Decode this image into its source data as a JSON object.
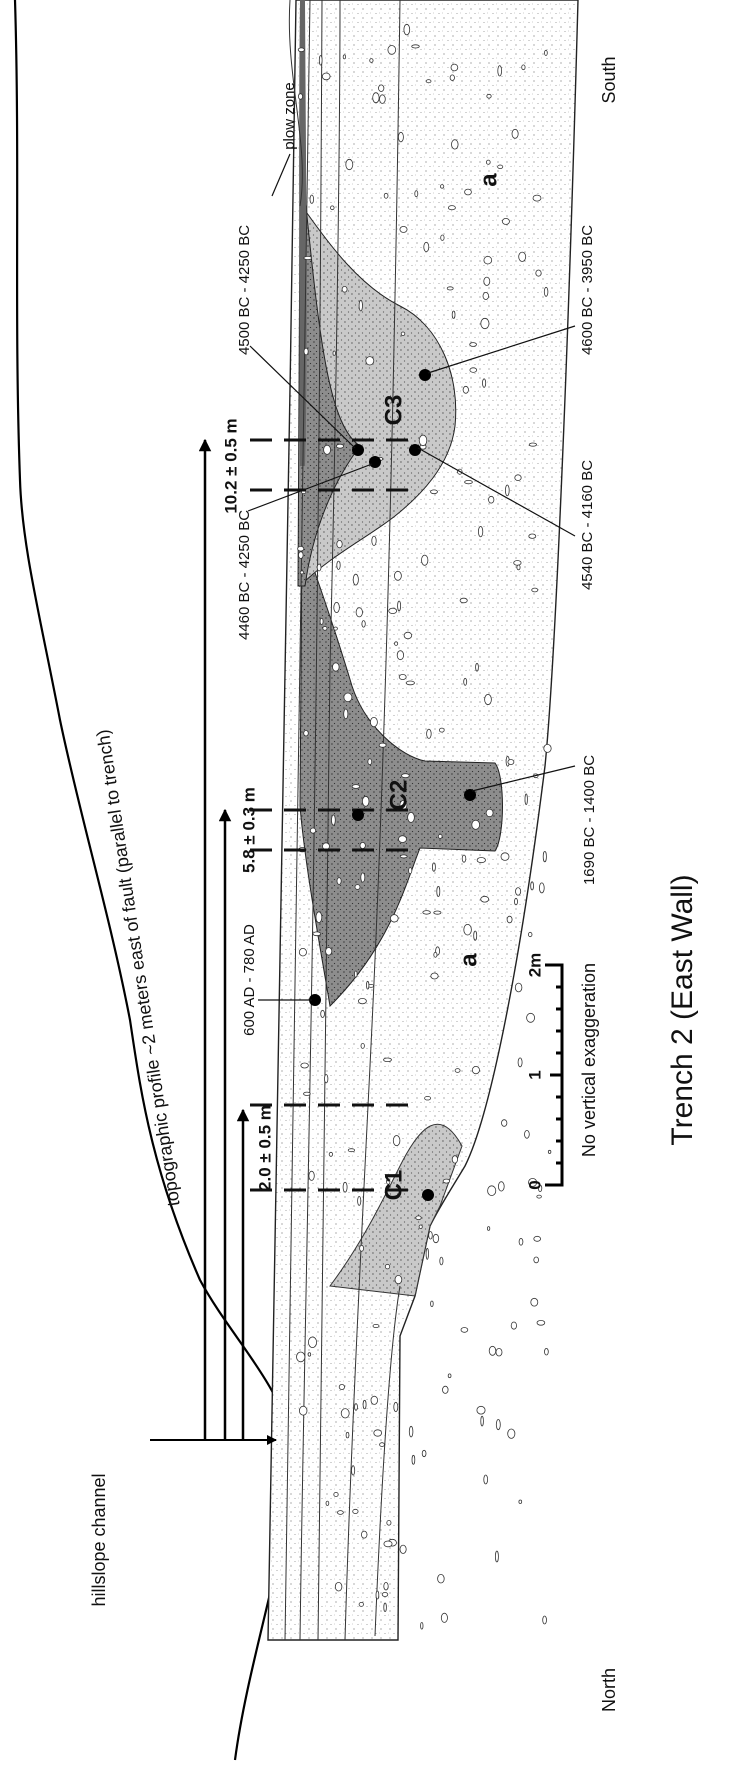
{
  "labels": {
    "hillslope_channel": "hillslope channel",
    "topographic_profile": "topographic profile ~2 meters east of fault (parallel to trench)",
    "plow_zone": "plow zone",
    "south": "South",
    "north": "North",
    "title": "Trench 2 (East Wall)"
  },
  "measurements": [
    "2.0 ± 0.5 m",
    "5.8 ± 0.3 m",
    "10.2 ± 0.5 m"
  ],
  "units": {
    "c1": "C1",
    "c2": "C2",
    "c3": "C3",
    "a_left": "a",
    "a_right": "a"
  },
  "dates": [
    "600 AD - 780 AD",
    "1690 BC - 1400 BC",
    "4460 BC - 4250 BC",
    "4500 BC - 4250 BC",
    "4540 BC - 4160 BC",
    "4600 BC - 3950 BC"
  ],
  "scale_bar": {
    "ticks": [
      "0",
      "1",
      "2m"
    ],
    "note": "No vertical exaggeration"
  }
}
